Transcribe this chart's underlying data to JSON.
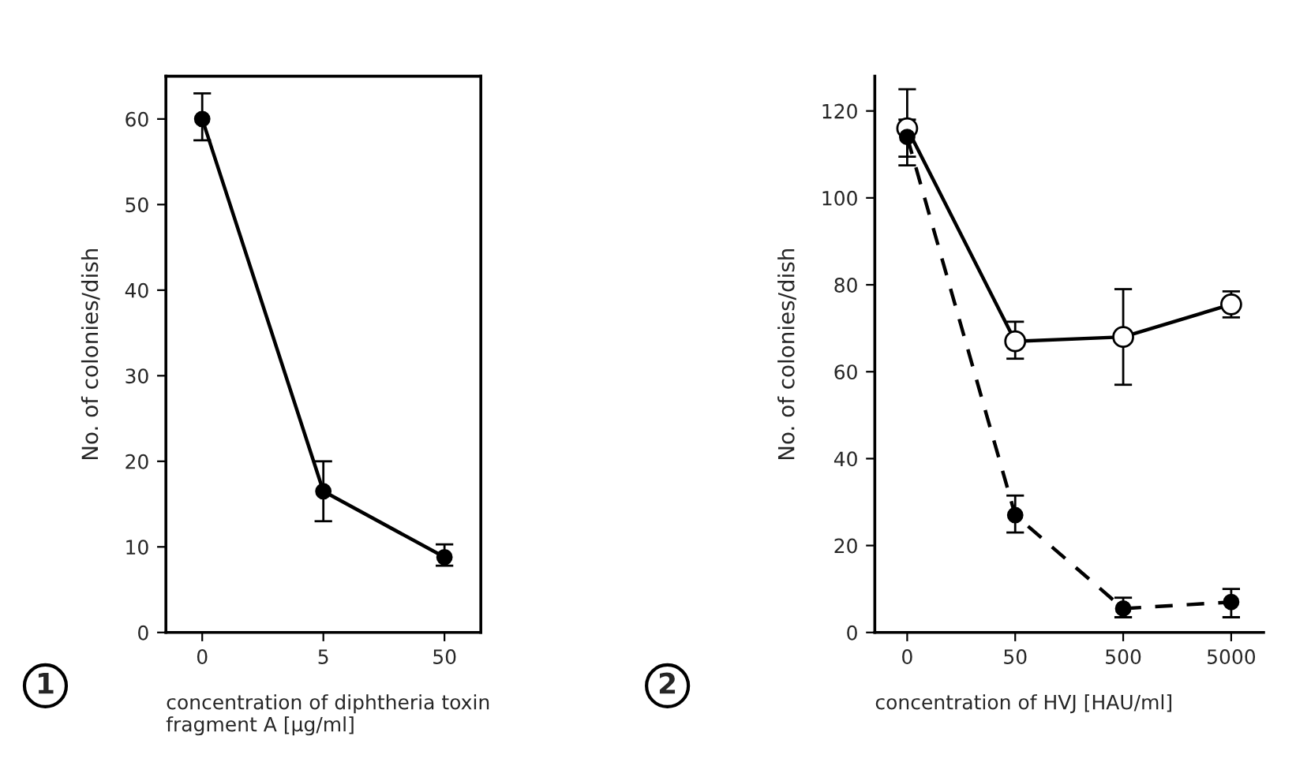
{
  "chart_data": [
    {
      "type": "line",
      "xlabel": "concentration of diphtheria toxin\nfragment A [μg/ml]",
      "ylabel": "No. of colonies/dish",
      "categories": [
        "0",
        "5",
        "50"
      ],
      "ylim": [
        0,
        65
      ],
      "yticks": [
        0,
        10,
        20,
        30,
        40,
        50,
        60
      ],
      "marker": "circle",
      "grid": false,
      "legend": false,
      "series": [
        {
          "color": "#000000",
          "values": [
            60,
            16.5,
            8.8
          ],
          "errors": [
            [
              57.5,
              63
            ],
            [
              13,
              20
            ],
            [
              7.8,
              10.3
            ]
          ],
          "line_style": "solid"
        }
      ],
      "annotations": [
        "1"
      ]
    },
    {
      "type": "line",
      "xlabel": "concentration of HVJ [HAU/ml]",
      "ylabel": "No. of colonies/dish",
      "categories": [
        "0",
        "50",
        "500",
        "5000"
      ],
      "ylim": [
        0,
        128
      ],
      "yticks": [
        0,
        20,
        40,
        60,
        80,
        100,
        120
      ],
      "marker": "circle",
      "grid": false,
      "legend": false,
      "series": [
        {
          "color": "#ffffff",
          "values": [
            116,
            67,
            68,
            75.5
          ],
          "errors": [
            [
              107.5,
              125
            ],
            [
              63,
              71.5
            ],
            [
              57,
              79
            ],
            [
              72.5,
              78.5
            ]
          ],
          "line_style": "solid"
        },
        {
          "color": "#000000",
          "values": [
            114,
            27,
            5.5,
            7
          ],
          "errors": [
            [
              109.5,
              118
            ],
            [
              23,
              31.5
            ],
            [
              3.5,
              8
            ],
            [
              3.5,
              10
            ]
          ],
          "line_style": "dashed"
        }
      ],
      "annotations": [
        "2"
      ]
    }
  ]
}
